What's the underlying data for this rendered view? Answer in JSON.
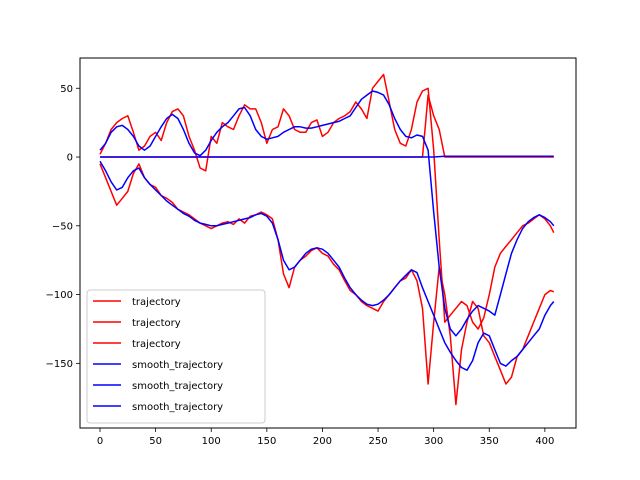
{
  "chart_data": {
    "type": "line",
    "title": "",
    "xlabel": "",
    "ylabel": "",
    "xlim": [
      -18,
      428
    ],
    "ylim": [
      -197,
      72
    ],
    "xticks": [
      0,
      50,
      100,
      150,
      200,
      250,
      300,
      350,
      400
    ],
    "yticks": [
      50,
      0,
      -50,
      -100,
      -150
    ],
    "xtick_labels": [
      "0",
      "50",
      "100",
      "150",
      "200",
      "250",
      "300",
      "350",
      "400"
    ],
    "ytick_labels": [
      "50",
      "0",
      "−50",
      "−100",
      "−150"
    ],
    "grid": false,
    "legend_position": "lower-left",
    "series": [
      {
        "name": "trajectory",
        "color": "#ff0000",
        "x": [
          0,
          5,
          10,
          15,
          20,
          25,
          30,
          35,
          40,
          45,
          50,
          55,
          60,
          65,
          70,
          75,
          80,
          85,
          90,
          95,
          100,
          105,
          110,
          115,
          120,
          125,
          130,
          135,
          140,
          145,
          150,
          155,
          160,
          165,
          170,
          175,
          180,
          185,
          190,
          195,
          200,
          205,
          210,
          215,
          220,
          225,
          230,
          235,
          240,
          245,
          250,
          255,
          260,
          265,
          270,
          275,
          280,
          285,
          290,
          295,
          300,
          305,
          310,
          315,
          320,
          325,
          330,
          335,
          340,
          345,
          350,
          355,
          360,
          365,
          370,
          375,
          380,
          385,
          390,
          395,
          400,
          405,
          408
        ],
        "y": [
          2,
          10,
          20,
          25,
          28,
          30,
          18,
          5,
          8,
          15,
          18,
          12,
          25,
          33,
          35,
          30,
          15,
          5,
          -8,
          -10,
          15,
          10,
          25,
          22,
          20,
          30,
          38,
          35,
          35,
          25,
          10,
          20,
          22,
          35,
          30,
          20,
          18,
          18,
          25,
          27,
          15,
          18,
          25,
          28,
          30,
          33,
          40,
          35,
          28,
          50,
          55,
          60,
          40,
          20,
          10,
          8,
          20,
          40,
          48,
          50,
          5,
          -60,
          -120,
          -115,
          -110,
          -105,
          -108,
          -120,
          -125,
          -117,
          -100,
          -80,
          -70,
          -65,
          -60,
          -55,
          -50,
          -48,
          -45,
          -42,
          -45,
          -50,
          -55
        ]
      },
      {
        "name": "trajectory",
        "color": "#ff0000",
        "x": [
          0,
          5,
          10,
          15,
          20,
          25,
          30,
          35,
          40,
          45,
          50,
          55,
          60,
          65,
          70,
          75,
          80,
          85,
          90,
          95,
          100,
          105,
          110,
          115,
          120,
          125,
          130,
          135,
          140,
          145,
          150,
          155,
          160,
          165,
          170,
          175,
          180,
          185,
          190,
          195,
          200,
          205,
          210,
          215,
          220,
          225,
          230,
          235,
          240,
          245,
          250,
          255,
          260,
          265,
          270,
          275,
          280,
          285,
          290,
          295,
          300,
          305,
          310,
          315,
          320,
          325,
          330,
          335,
          340,
          345,
          350,
          355,
          360,
          365,
          370,
          375,
          380,
          385,
          390,
          395,
          400,
          405,
          408
        ],
        "y": [
          -5,
          -15,
          -25,
          -35,
          -30,
          -25,
          -12,
          -5,
          -15,
          -20,
          -22,
          -28,
          -30,
          -33,
          -38,
          -40,
          -42,
          -45,
          -48,
          -50,
          -52,
          -50,
          -48,
          -47,
          -49,
          -45,
          -48,
          -43,
          -42,
          -40,
          -42,
          -45,
          -60,
          -85,
          -95,
          -80,
          -75,
          -72,
          -68,
          -66,
          -70,
          -72,
          -78,
          -82,
          -90,
          -97,
          -100,
          -105,
          -108,
          -110,
          -112,
          -105,
          -100,
          -95,
          -90,
          -88,
          -82,
          -90,
          -110,
          -165,
          -120,
          -80,
          -100,
          -130,
          -180,
          -140,
          -120,
          -105,
          -110,
          -130,
          -135,
          -145,
          -155,
          -165,
          -160,
          -145,
          -140,
          -130,
          -120,
          -110,
          -100,
          -97,
          -98
        ]
      },
      {
        "name": "trajectory",
        "color": "#ff0000",
        "x": [
          0,
          50,
          100,
          150,
          200,
          250,
          290,
          295,
          300,
          305,
          310,
          320,
          340,
          360,
          380,
          400,
          408
        ],
        "y": [
          0,
          0,
          0,
          0,
          0,
          0,
          0,
          45,
          30,
          20,
          0,
          0,
          0,
          0,
          0,
          0,
          0
        ]
      },
      {
        "name": "smooth_trajectory",
        "color": "#0000ff",
        "x": [
          0,
          5,
          10,
          15,
          20,
          25,
          30,
          35,
          40,
          45,
          50,
          55,
          60,
          65,
          70,
          75,
          80,
          85,
          90,
          95,
          100,
          105,
          110,
          115,
          120,
          125,
          130,
          135,
          140,
          145,
          150,
          155,
          160,
          165,
          170,
          175,
          180,
          185,
          190,
          195,
          200,
          205,
          210,
          215,
          220,
          225,
          230,
          235,
          240,
          245,
          250,
          255,
          260,
          265,
          270,
          275,
          280,
          285,
          290,
          295,
          300,
          305,
          310,
          315,
          320,
          325,
          330,
          335,
          340,
          345,
          350,
          355,
          360,
          365,
          370,
          375,
          380,
          385,
          390,
          395,
          400,
          405,
          408
        ],
        "y": [
          5,
          10,
          18,
          22,
          23,
          20,
          15,
          8,
          5,
          8,
          15,
          22,
          28,
          31,
          28,
          20,
          10,
          3,
          1,
          5,
          12,
          18,
          22,
          25,
          30,
          35,
          36,
          30,
          20,
          15,
          13,
          14,
          15,
          18,
          20,
          22,
          22,
          21,
          21,
          22,
          23,
          24,
          25,
          26,
          28,
          30,
          36,
          42,
          45,
          48,
          47,
          45,
          38,
          28,
          20,
          15,
          14,
          16,
          15,
          5,
          -40,
          -80,
          -110,
          -125,
          -130,
          -125,
          -118,
          -112,
          -108,
          -110,
          -112,
          -115,
          -100,
          -85,
          -70,
          -60,
          -52,
          -47,
          -44,
          -42,
          -44,
          -47,
          -50
        ]
      },
      {
        "name": "smooth_trajectory",
        "color": "#0000ff",
        "x": [
          0,
          5,
          10,
          15,
          20,
          25,
          30,
          35,
          40,
          45,
          50,
          55,
          60,
          65,
          70,
          75,
          80,
          85,
          90,
          95,
          100,
          105,
          110,
          115,
          120,
          125,
          130,
          135,
          140,
          145,
          150,
          155,
          160,
          165,
          170,
          175,
          180,
          185,
          190,
          195,
          200,
          205,
          210,
          215,
          220,
          225,
          230,
          235,
          240,
          245,
          250,
          255,
          260,
          265,
          270,
          275,
          280,
          285,
          290,
          295,
          300,
          305,
          310,
          315,
          320,
          325,
          330,
          335,
          340,
          345,
          350,
          355,
          360,
          365,
          370,
          375,
          380,
          385,
          390,
          395,
          400,
          405,
          408
        ],
        "y": [
          -3,
          -10,
          -18,
          -24,
          -22,
          -15,
          -10,
          -8,
          -15,
          -20,
          -24,
          -28,
          -32,
          -35,
          -38,
          -41,
          -43,
          -46,
          -48,
          -49,
          -50,
          -50,
          -49,
          -48,
          -47,
          -46,
          -45,
          -44,
          -42,
          -41,
          -43,
          -48,
          -60,
          -75,
          -82,
          -80,
          -75,
          -70,
          -67,
          -66,
          -67,
          -70,
          -75,
          -80,
          -88,
          -95,
          -100,
          -104,
          -107,
          -108,
          -107,
          -104,
          -100,
          -95,
          -90,
          -86,
          -82,
          -84,
          -95,
          -105,
          -115,
          -125,
          -135,
          -142,
          -148,
          -153,
          -155,
          -148,
          -135,
          -128,
          -130,
          -140,
          -150,
          -152,
          -148,
          -145,
          -140,
          -135,
          -130,
          -125,
          -115,
          -108,
          -105
        ]
      },
      {
        "name": "smooth_trajectory",
        "color": "#0000ff",
        "x": [
          0,
          50,
          100,
          150,
          200,
          250,
          300,
          310,
          350,
          400,
          408
        ],
        "y": [
          0,
          0,
          0,
          0,
          0,
          0,
          0,
          0.5,
          0.5,
          0.5,
          0.5
        ]
      }
    ]
  }
}
